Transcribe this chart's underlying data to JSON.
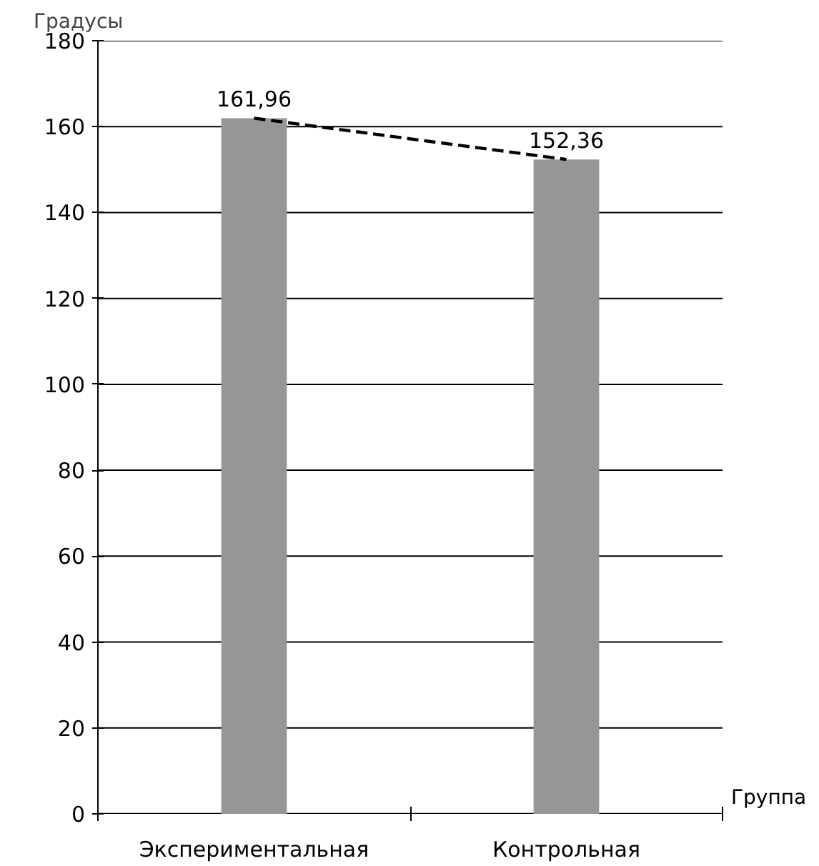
{
  "chart_data": {
    "type": "bar",
    "ylabel": "Градусы",
    "xlabel": "Группа",
    "categories": [
      "Экспериментальная",
      "Контрольная"
    ],
    "series": [
      {
        "color": "#969696",
        "values": [
          161.96,
          152.36
        ],
        "value_labels": [
          "161,96",
          "152,36"
        ]
      },
      {
        "type": "line",
        "color": "#000000",
        "values": [
          161.96,
          152.36
        ],
        "line_style": "dashed",
        "marker": "none"
      }
    ],
    "ylim": [
      0,
      180
    ],
    "yticks": [
      0,
      20,
      40,
      60,
      80,
      100,
      120,
      140,
      160,
      180
    ],
    "grid": "y"
  }
}
